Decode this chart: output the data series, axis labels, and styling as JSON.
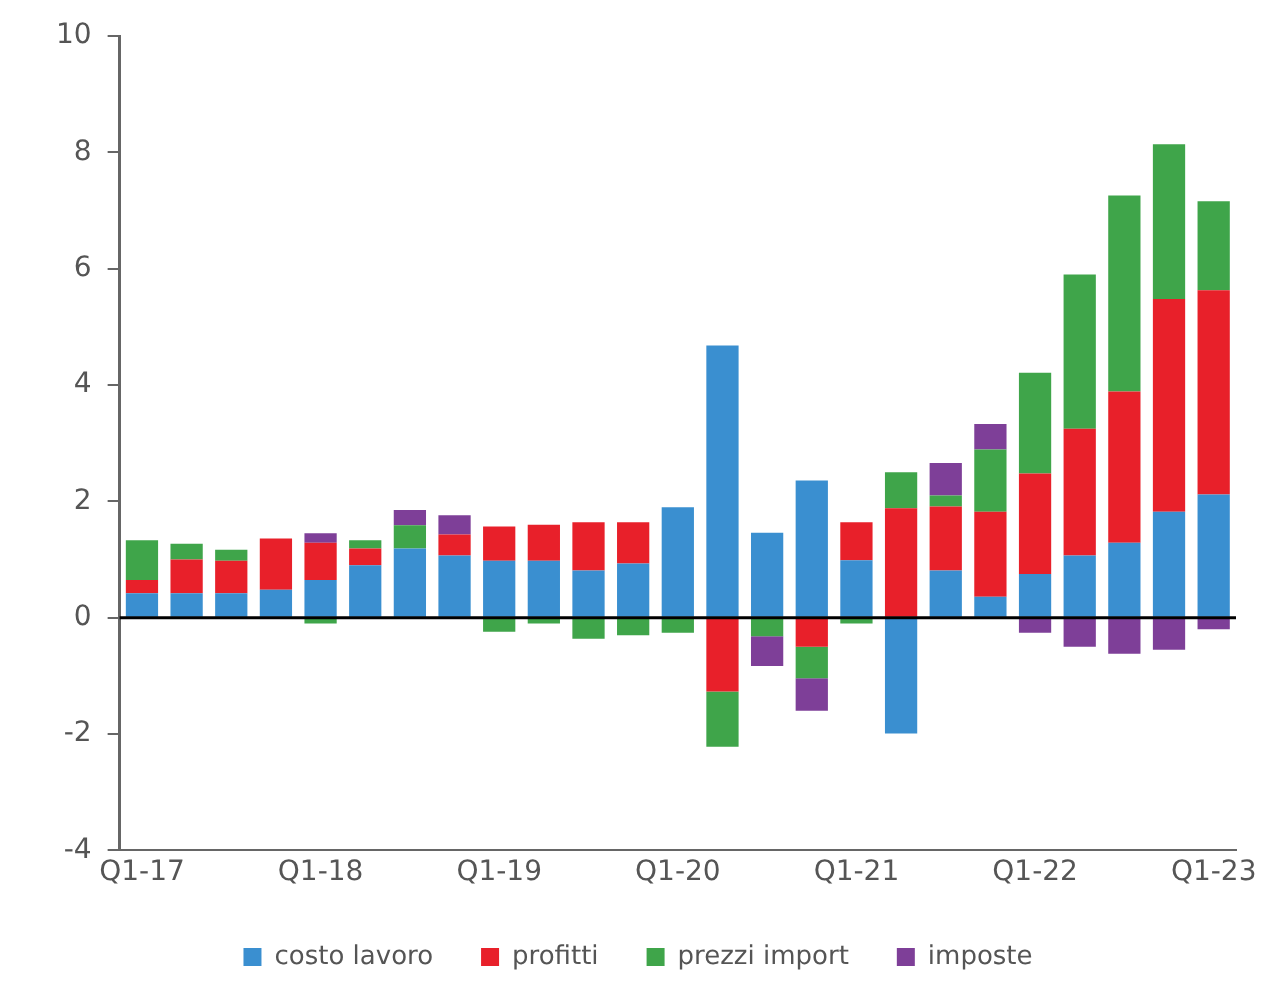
{
  "chart_data": {
    "type": "bar",
    "stacked": true,
    "categories": [
      "Q1-17",
      null,
      null,
      null,
      "Q1-18",
      null,
      null,
      null,
      "Q1-19",
      null,
      null,
      null,
      "Q1-20",
      null,
      null,
      null,
      "Q1-21",
      null,
      null,
      null,
      "Q1-22",
      null,
      null,
      null,
      "Q1-23"
    ],
    "series": [
      {
        "name": "costo lavoro",
        "color": "#3a8fd0",
        "values": [
          0.42,
          0.42,
          0.42,
          0.48,
          0.65,
          0.9,
          1.19,
          1.07,
          0.98,
          0.98,
          0.81,
          0.93,
          1.9,
          4.68,
          1.46,
          2.36,
          0.99,
          -1.99,
          0.81,
          0.36,
          0.75,
          1.07,
          1.29,
          1.82,
          2.12
        ]
      },
      {
        "name": "profitti",
        "color": "#e8202a",
        "values": [
          0.23,
          0.58,
          0.56,
          0.88,
          0.64,
          0.29,
          null,
          0.36,
          0.59,
          0.62,
          0.83,
          0.71,
          null,
          -1.27,
          null,
          -0.5,
          0.65,
          1.88,
          1.1,
          1.46,
          1.73,
          2.18,
          2.6,
          3.66,
          3.51
        ]
      },
      {
        "name": "prezzi import",
        "color": "#3fa54a",
        "values": [
          0.68,
          0.27,
          0.19,
          null,
          -0.1,
          0.14,
          0.4,
          null,
          -0.24,
          -0.1,
          -0.36,
          -0.3,
          -0.26,
          -0.95,
          -0.32,
          -0.54,
          -0.1,
          0.62,
          0.19,
          1.07,
          1.73,
          2.65,
          3.37,
          2.66,
          1.53
        ]
      },
      {
        "name": "imposte",
        "color": "#7e3f98",
        "values": [
          null,
          null,
          null,
          null,
          0.16,
          null,
          0.26,
          0.33,
          null,
          null,
          null,
          null,
          null,
          null,
          -0.51,
          -0.56,
          null,
          null,
          0.56,
          0.44,
          -0.26,
          -0.5,
          -0.62,
          -0.55,
          -0.2
        ]
      }
    ],
    "ylim": [
      -4,
      10
    ],
    "yticks": [
      -4,
      -2,
      0,
      2,
      4,
      6,
      8,
      10
    ],
    "grid": false,
    "legend": "bottom",
    "ref_lines": [
      {
        "axis": "y",
        "value": 0,
        "color": "#000000"
      }
    ]
  }
}
